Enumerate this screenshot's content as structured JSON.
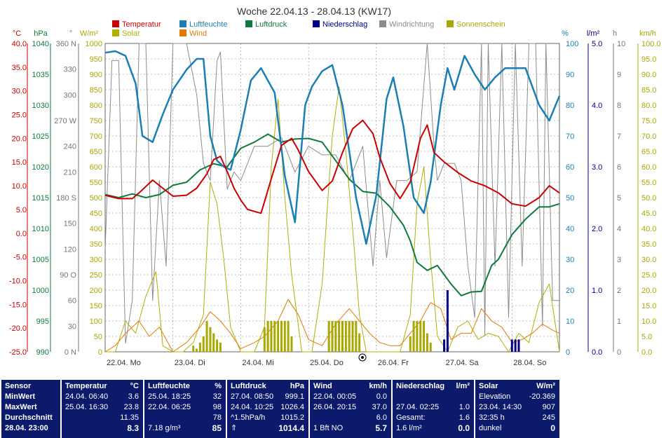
{
  "title": "Woche 22.04.13 - 28.04.13 (KW17)",
  "legend": [
    {
      "label": "Temperatur",
      "color": "#cc0000"
    },
    {
      "label": "Luftfeuchte",
      "color": "#1a7fb4"
    },
    {
      "label": "Luftdruck",
      "color": "#0e7a3c"
    },
    {
      "label": "Niederschlag",
      "color": "#00008b"
    },
    {
      "label": "Windrichtung",
      "color": "#8c8c8c"
    },
    {
      "label": "Sonnenschein",
      "color": "#a8a800"
    },
    {
      "label": "Solar",
      "color": "#b0b000"
    },
    {
      "label": "Wind",
      "color": "#e07b00"
    }
  ],
  "axis_units": {
    "temp": "°C",
    "press": "hPa",
    "dir": "°",
    "solar": "W/m²",
    "hum": "%",
    "rain": "l/m²",
    "sun": "h",
    "wind": "km/h"
  },
  "axes": {
    "temp": [
      "40.0",
      "35.0",
      "30.0",
      "25.0",
      "20.0",
      "15.0",
      "10.0",
      "5.0",
      "0.0",
      "-5.0",
      "-10.0",
      "-15.0",
      "-20.0",
      "-25.0"
    ],
    "press": [
      "1040",
      "1035",
      "1030",
      "1025",
      "1020",
      "1015",
      "1010",
      "1005",
      "1000",
      "995",
      "990"
    ],
    "dir": [
      "360 N",
      "330",
      "300",
      "270 W",
      "240",
      "210",
      "180 S",
      "150",
      "120",
      "90 O",
      "60",
      "30",
      "0 N"
    ],
    "solar": [
      "1000",
      "950",
      "900",
      "850",
      "800",
      "750",
      "700",
      "650",
      "600",
      "550",
      "500",
      "450",
      "400",
      "350",
      "300",
      "250",
      "200",
      "150",
      "100",
      "50",
      "0"
    ],
    "hum": [
      "100",
      "90",
      "80",
      "70",
      "60",
      "50",
      "40",
      "30",
      "20",
      "10",
      "0"
    ],
    "rain": [
      "5.0",
      "4.0",
      "3.0",
      "2.0",
      "1.0",
      "0.0"
    ],
    "sun": [
      "10",
      "9",
      "8",
      "7",
      "6",
      "5",
      "4",
      "3",
      "2",
      "1",
      "0"
    ],
    "wind": [
      "100.0",
      "95.0",
      "90.0",
      "85.0",
      "80.0",
      "75.0",
      "70.0",
      "65.0",
      "60.0",
      "55.0",
      "50.0",
      "45.0",
      "40.0",
      "35.0",
      "30.0",
      "25.0",
      "20.0",
      "15.0",
      "10.0",
      "5.0",
      "0.0"
    ]
  },
  "xlabels": [
    "22.04. Mo",
    "23.04. Di",
    "24.04. Mi",
    "25.04. Do",
    "26.04. Fr",
    "27.04. Sa",
    "28.04. So"
  ],
  "chart_data": {
    "type": "line",
    "title": "Woche 22.04.13 - 28.04.13 (KW17)",
    "x_unit": "day index (0 = 22.04. 00:00)",
    "series": [
      {
        "name": "Temperatur",
        "unit": "°C",
        "x": [
          0,
          0.2,
          0.4,
          0.5,
          0.7,
          0.85,
          1.0,
          1.2,
          1.35,
          1.5,
          1.6,
          1.7,
          1.8,
          1.9,
          2.0,
          2.1,
          2.3,
          2.45,
          2.6,
          2.75,
          2.85,
          3.0,
          3.2,
          3.35,
          3.5,
          3.65,
          3.8,
          3.95,
          4.05,
          4.2,
          4.35,
          4.5,
          4.65,
          4.75,
          4.85,
          5.0,
          5.2,
          5.4,
          5.6,
          5.8,
          6.0,
          6.2,
          6.4,
          6.55,
          6.7
        ],
        "values": [
          8,
          7.3,
          7.3,
          8.5,
          11.2,
          9.5,
          7.8,
          8,
          9.5,
          12.5,
          15.5,
          16.2,
          13,
          9.5,
          7,
          5,
          4.2,
          11.5,
          18.5,
          20,
          17.5,
          13,
          9,
          11,
          17,
          22,
          23.8,
          21,
          16,
          10.5,
          7.3,
          10.8,
          20,
          22.8,
          17,
          15,
          12.8,
          11,
          10,
          8.5,
          6.2,
          5.7,
          7.5,
          10,
          8.5
        ]
      },
      {
        "name": "Luftfeuchte",
        "unit": "%",
        "x": [
          0,
          0.15,
          0.3,
          0.45,
          0.55,
          0.7,
          0.85,
          1.0,
          1.2,
          1.35,
          1.45,
          1.55,
          1.65,
          1.75,
          1.85,
          2.0,
          2.15,
          2.3,
          2.5,
          2.65,
          2.8,
          2.95,
          3.05,
          3.2,
          3.35,
          3.5,
          3.7,
          3.85,
          4.0,
          4.15,
          4.25,
          4.4,
          4.55,
          4.7,
          4.8,
          4.95,
          5.05,
          5.15,
          5.3,
          5.45,
          5.6,
          5.75,
          5.9,
          6.05,
          6.2,
          6.4,
          6.55,
          6.7
        ],
        "values": [
          97,
          97.5,
          96,
          87,
          70,
          68,
          77,
          85,
          91.5,
          95,
          95,
          70,
          62,
          60,
          59,
          72,
          88,
          92,
          84,
          57,
          42,
          80,
          86,
          91,
          93,
          80,
          50,
          35,
          51,
          82,
          89,
          73,
          50,
          45,
          55,
          80,
          92,
          85,
          96,
          90,
          85,
          89,
          92,
          92,
          92,
          80,
          75,
          83
        ]
      },
      {
        "name": "Luftdruck",
        "unit": "hPa",
        "x": [
          0,
          0.2,
          0.4,
          0.6,
          0.8,
          1.0,
          1.2,
          1.4,
          1.6,
          1.8,
          2.0,
          2.2,
          2.4,
          2.6,
          2.8,
          3.0,
          3.2,
          3.4,
          3.6,
          3.8,
          4.0,
          4.2,
          4.4,
          4.5,
          4.6,
          4.75,
          4.9,
          5.0,
          5.1,
          5.25,
          5.4,
          5.55,
          5.7,
          5.8,
          5.9,
          6.0,
          6.2,
          6.4,
          6.55,
          6.7
        ],
        "values": [
          1015.5,
          1015,
          1015.6,
          1015,
          1015.5,
          1017,
          1017.5,
          1019.5,
          1020.5,
          1020,
          1023,
          1024,
          1025.3,
          1024,
          1024.5,
          1024.6,
          1024,
          1021,
          1018,
          1016,
          1015.7,
          1013.5,
          1010.5,
          1008,
          1004.5,
          1003.2,
          1004,
          1002.5,
          1001,
          999.1,
          999.7,
          999.8,
          1004,
          1005,
          1007,
          1009,
          1011.5,
          1013.5,
          1013.5,
          1014
        ]
      },
      {
        "name": "Solar",
        "unit": "W/m²",
        "x": [
          0,
          0.15,
          0.3,
          0.45,
          0.6,
          0.75,
          0.85,
          1.0,
          1.15,
          1.3,
          1.45,
          1.55,
          1.65,
          1.75,
          1.85,
          2.0,
          2.2,
          2.35,
          2.45,
          2.55,
          2.65,
          2.75,
          2.9,
          3.05,
          3.2,
          3.35,
          3.45,
          3.55,
          3.65,
          3.75,
          3.85,
          4.05,
          4.2,
          4.35,
          4.5,
          4.6,
          4.7,
          4.8,
          4.9,
          5.05,
          5.2,
          5.35,
          5.5,
          5.65,
          5.8,
          5.95,
          6.1,
          6.25,
          6.4,
          6.55,
          6.7
        ],
        "values": [
          0,
          0,
          100,
          60,
          180,
          260,
          20,
          0,
          0,
          30,
          120,
          550,
          480,
          300,
          80,
          0,
          0,
          80,
          600,
          820,
          500,
          250,
          0,
          0,
          220,
          700,
          860,
          650,
          400,
          120,
          0,
          0,
          0,
          0,
          120,
          480,
          600,
          300,
          50,
          0,
          80,
          100,
          40,
          60,
          50,
          0,
          60,
          30,
          160,
          220,
          0
        ]
      },
      {
        "name": "Wind",
        "unit": "km/h",
        "x": [
          0,
          0.15,
          0.3,
          0.5,
          0.65,
          0.8,
          1.0,
          1.2,
          1.4,
          1.55,
          1.7,
          1.85,
          2.0,
          2.2,
          2.35,
          2.55,
          2.7,
          2.85,
          3.0,
          3.2,
          3.4,
          3.6,
          3.75,
          3.9,
          4.05,
          4.2,
          4.35,
          4.5,
          4.65,
          4.8,
          4.95,
          5.1,
          5.25,
          5.4,
          5.55,
          5.7,
          5.85,
          6.0,
          6.15,
          6.3,
          6.45,
          6.6,
          6.7
        ],
        "values": [
          0,
          2,
          6,
          10,
          5,
          8,
          0,
          3,
          8,
          13,
          10,
          6,
          1,
          3,
          5,
          10,
          17,
          12,
          4,
          2,
          9,
          14,
          10,
          6,
          3,
          2,
          2,
          6,
          10,
          16,
          14,
          4,
          6,
          6,
          14,
          10,
          8,
          3,
          4,
          6,
          9,
          7,
          6
        ]
      },
      {
        "name": "Windrichtung",
        "unit": "°",
        "x": [
          0,
          0.1,
          0.2,
          0.3,
          0.4,
          0.5,
          0.6,
          0.7,
          0.8,
          0.9,
          1.0,
          1.2,
          1.35,
          1.45,
          1.55,
          1.65,
          1.7,
          1.8,
          1.9,
          2.0,
          2.2,
          2.4,
          2.6,
          2.8,
          3.0,
          3.2,
          3.4,
          3.6,
          3.8,
          3.95,
          4.05,
          4.15,
          4.3,
          4.45,
          4.6,
          4.65,
          4.75,
          4.85,
          4.9,
          5.0,
          5.05,
          5.15,
          5.25,
          5.35,
          5.45,
          5.55,
          5.6,
          5.65,
          5.75,
          5.85,
          5.95,
          6.05,
          6.15,
          6.25,
          6.35,
          6.45,
          6.5,
          6.6,
          6.7
        ],
        "values": [
          120,
          340,
          340,
          10,
          60,
          360,
          360,
          60,
          200,
          100,
          360,
          360,
          300,
          220,
          200,
          340,
          350,
          190,
          210,
          200,
          240,
          240,
          250,
          210,
          240,
          230,
          230,
          200,
          240,
          100,
          200,
          110,
          200,
          200,
          210,
          260,
          360,
          240,
          200,
          220,
          220,
          220,
          200,
          100,
          40,
          360,
          20,
          360,
          100,
          360,
          40,
          360,
          100,
          360,
          360,
          30,
          360,
          60,
          60
        ]
      },
      {
        "name": "Sonnenschein",
        "unit": "h",
        "x": [
          1.3,
          1.35,
          1.4,
          1.45,
          1.5,
          1.55,
          1.6,
          1.65,
          1.7,
          2.35,
          2.4,
          2.45,
          2.5,
          2.55,
          2.6,
          2.65,
          2.7,
          2.75,
          3.3,
          3.35,
          3.4,
          3.45,
          3.5,
          3.55,
          3.6,
          3.65,
          3.7,
          3.75,
          4.5,
          4.55,
          4.6,
          4.65,
          4.7,
          4.75,
          4.8
        ],
        "values": [
          0.2,
          0.1,
          0.3,
          0.5,
          1.0,
          0.8,
          0.6,
          0.4,
          0.3,
          0.8,
          1.0,
          1.0,
          1.0,
          1.0,
          1.0,
          1.0,
          1.0,
          0.5,
          1.0,
          1.0,
          1.0,
          1.0,
          1.0,
          1.0,
          1.0,
          1.0,
          1.0,
          0.6,
          0.5,
          1.0,
          1.0,
          1.0,
          1.0,
          0.6,
          0.3
        ]
      },
      {
        "name": "Niederschlag",
        "unit": "l/m²",
        "x": [
          5.0,
          5.05,
          6.0,
          6.05,
          6.1
        ],
        "values": [
          0.2,
          1.0,
          0.2,
          0.2,
          0.2
        ]
      }
    ],
    "ylim_temp": [
      -25,
      40
    ],
    "ylim_press": [
      990,
      1040
    ],
    "ylim_dir": [
      0,
      360
    ],
    "ylim_solar": [
      0,
      1000
    ],
    "ylim_hum": [
      0,
      100
    ],
    "ylim_rain": [
      0,
      5
    ],
    "ylim_sun": [
      0,
      10
    ],
    "ylim_wind": [
      0,
      100
    ],
    "xlim": [
      0,
      6.7
    ],
    "grid": true
  },
  "panel": [
    {
      "head": [
        "Sensor",
        ""
      ],
      "rows": [
        [
          "MinWert",
          ""
        ],
        [
          "MaxWert",
          ""
        ],
        [
          "Durchschnitt",
          ""
        ],
        [
          "28.04. 23:00",
          ""
        ]
      ]
    },
    {
      "head": [
        "Temperatur",
        "°C"
      ],
      "rows": [
        [
          "24.04.  06:40",
          "3.6"
        ],
        [
          "25.04.  16:30",
          "23.8"
        ],
        [
          "",
          "11.35"
        ],
        [
          "",
          "8.3"
        ]
      ]
    },
    {
      "head": [
        "Luftfeuchte",
        "%"
      ],
      "rows": [
        [
          "25.04.  18:25",
          "32"
        ],
        [
          "22.04.  06:25",
          "98"
        ],
        [
          "",
          "78"
        ],
        [
          "7.18 g/m³",
          "85"
        ]
      ]
    },
    {
      "head": [
        "Luftdruck",
        "hPa"
      ],
      "rows": [
        [
          "27.04.  08:50",
          "999.1"
        ],
        [
          "24.04.  10:25",
          "1026.4"
        ],
        [
          "^1.5hPa/h",
          "1015.2"
        ],
        [
          "⇑",
          "1014.4"
        ]
      ]
    },
    {
      "head": [
        "Wind",
        "km/h"
      ],
      "rows": [
        [
          "22.04.  00:05",
          "0.0"
        ],
        [
          "26.04.  20:15",
          "37.0"
        ],
        [
          "",
          "6.0"
        ],
        [
          "1 Bft NO",
          "5.7"
        ]
      ]
    },
    {
      "head": [
        "Niederschlag",
        "l/m²"
      ],
      "rows": [
        [
          "",
          ""
        ],
        [
          "27.04.  02:25",
          "1.0"
        ],
        [
          "Gesamt:",
          "1.6"
        ],
        [
          "1.6 l/m²",
          "0.0"
        ]
      ]
    },
    {
      "head": [
        "Solar",
        "W/m²"
      ],
      "rows": [
        [
          "Elevation",
          "-20.369"
        ],
        [
          "23.04.  14:30",
          "907"
        ],
        [
          "32:35 h",
          "245"
        ],
        [
          "dunkel",
          "0"
        ]
      ]
    }
  ]
}
